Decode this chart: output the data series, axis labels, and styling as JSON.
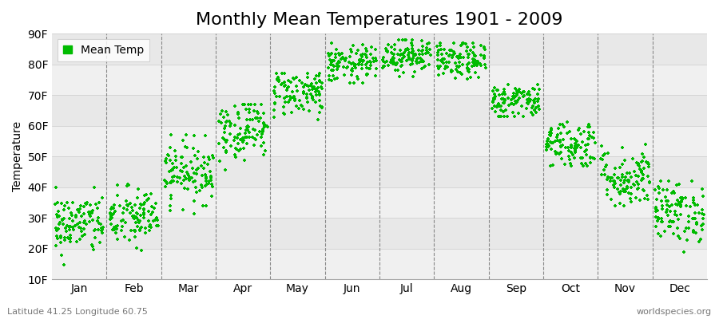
{
  "title": "Monthly Mean Temperatures 1901 - 2009",
  "ylabel": "Temperature",
  "xlabel_labels": [
    "Jan",
    "Feb",
    "Mar",
    "Apr",
    "May",
    "Jun",
    "Jul",
    "Aug",
    "Sep",
    "Oct",
    "Nov",
    "Dec"
  ],
  "ytick_labels": [
    "10F",
    "20F",
    "30F",
    "40F",
    "50F",
    "60F",
    "70F",
    "80F",
    "90F"
  ],
  "ytick_values": [
    10,
    20,
    30,
    40,
    50,
    60,
    70,
    80,
    90
  ],
  "ylim": [
    10,
    90
  ],
  "dot_color": "#00bb00",
  "dot_size": 12,
  "background_color": "#ffffff",
  "plot_bg_color": "#ffffff",
  "band_colors": [
    "#f0f0f0",
    "#e8e8e8"
  ],
  "grid_color": "#888888",
  "title_fontsize": 16,
  "axis_fontsize": 10,
  "tick_fontsize": 10,
  "legend_label": "Mean Temp",
  "footer_left": "Latitude 41.25 Longitude 60.75",
  "footer_right": "worldspecies.org",
  "seed": 42,
  "n_years": 109,
  "monthly_means": [
    28,
    30,
    45,
    59,
    71,
    80,
    83,
    81,
    68,
    54,
    43,
    32
  ],
  "monthly_stds": [
    5,
    5,
    5,
    5,
    4,
    3,
    3,
    3,
    3,
    4,
    5,
    5
  ],
  "monthly_ranges": [
    [
      12,
      40
    ],
    [
      10,
      42
    ],
    [
      28,
      57
    ],
    [
      42,
      67
    ],
    [
      62,
      77
    ],
    [
      74,
      87
    ],
    [
      76,
      88
    ],
    [
      75,
      87
    ],
    [
      63,
      74
    ],
    [
      47,
      62
    ],
    [
      34,
      61
    ],
    [
      15,
      42
    ]
  ]
}
